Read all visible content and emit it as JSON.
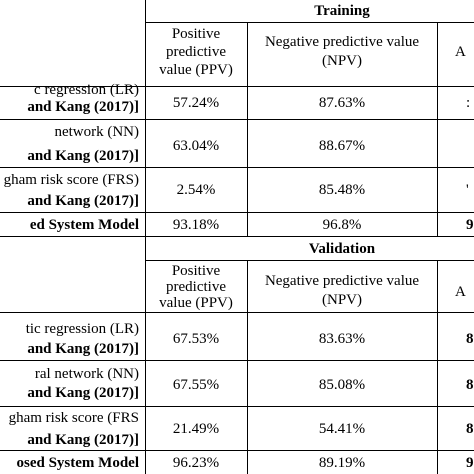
{
  "training": {
    "title": "Training",
    "col_ppv": [
      "Positive",
      "predictive",
      "value (PPV)"
    ],
    "col_npv": [
      "Negative predictive value",
      "(NPV)"
    ],
    "col_acc": "A",
    "rows": [
      {
        "name": "c regression (LR)",
        "cite": "and Kang (2017)]",
        "ppv": "57.24%",
        "npv": "87.63%",
        "acc": ":"
      },
      {
        "name": "network (NN)",
        "cite": "and Kang (2017)]",
        "ppv": "63.04%",
        "npv": "88.67%",
        "acc": ""
      },
      {
        "name": "gham risk score (FRS)",
        "cite": "and Kang (2017)]",
        "ppv": "2.54%",
        "npv": "85.48%",
        "acc": "'"
      },
      {
        "name": "ed System Model",
        "cite": "",
        "ppv": "93.18%",
        "npv": "96.8%",
        "acc": "9"
      }
    ]
  },
  "validation": {
    "title": "Validation",
    "col_ppv": [
      "Positive",
      "predictive",
      "value (PPV)"
    ],
    "col_npv": [
      "Negative predictive value",
      "(NPV)"
    ],
    "col_acc": "A",
    "rows": [
      {
        "name": "tic regression (LR)",
        "cite": "and Kang (2017)]",
        "ppv": "67.53%",
        "npv": "83.63%",
        "acc": "8"
      },
      {
        "name": "ral network (NN)",
        "cite": "and Kang (2017)]",
        "ppv": "67.55%",
        "npv": "85.08%",
        "acc": "8"
      },
      {
        "name": "gham risk score (FRS",
        "cite": "and Kang (2017)]",
        "ppv": "21.49%",
        "npv": "54.41%",
        "acc": "8"
      },
      {
        "name": "osed System Model",
        "cite": "",
        "ppv": "96.23%",
        "npv": "89.19%",
        "acc": "9"
      }
    ]
  }
}
